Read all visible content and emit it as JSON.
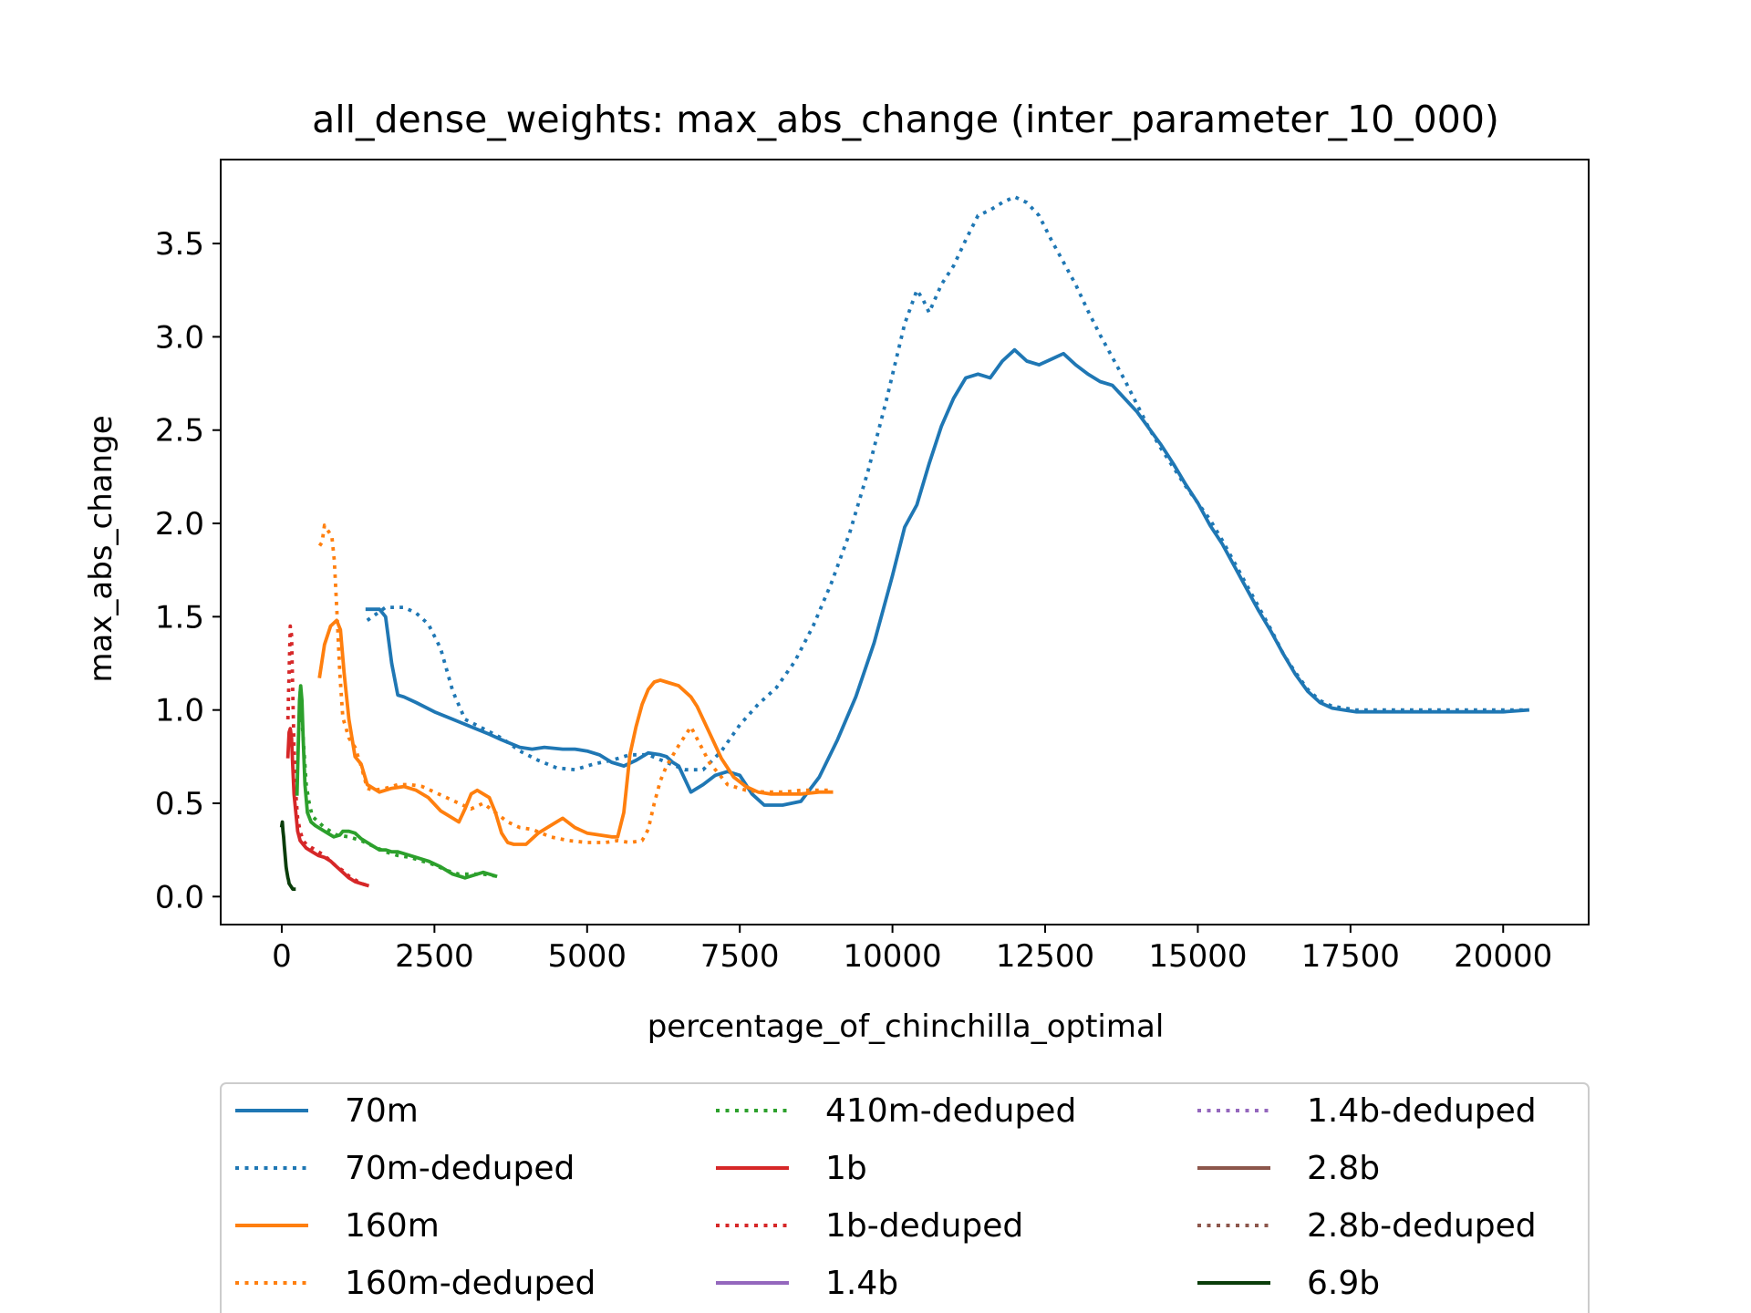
{
  "chart_data": {
    "type": "line",
    "title": "all_dense_weights: max_abs_change (inter_parameter_10_000)",
    "xlabel": "percentage_of_chinchilla_optimal",
    "ylabel": "max_abs_change",
    "xlim": [
      -1000,
      21400
    ],
    "ylim": [
      -0.15,
      3.95
    ],
    "xticks": [
      0,
      2500,
      5000,
      7500,
      10000,
      12500,
      15000,
      17500,
      20000
    ],
    "xtick_labels": [
      "0",
      "2500",
      "5000",
      "7500",
      "10000",
      "12500",
      "15000",
      "17500",
      "20000"
    ],
    "yticks": [
      0.0,
      0.5,
      1.0,
      1.5,
      2.0,
      2.5,
      3.0,
      3.5
    ],
    "ytick_labels": [
      "0.0",
      "0.5",
      "1.0",
      "1.5",
      "2.0",
      "2.5",
      "3.0",
      "3.5"
    ],
    "grid": false,
    "legend_placement": "below plot, 3 columns",
    "series": [
      {
        "name": "70m",
        "color": "#1f77b4",
        "style": "solid",
        "x": [
          1400,
          1600,
          1700,
          1800,
          1900,
          2000,
          2200,
          2500,
          2800,
          3100,
          3400,
          3600,
          3900,
          4100,
          4300,
          4600,
          4800,
          5000,
          5200,
          5400,
          5600,
          5800,
          6000,
          6200,
          6300,
          6400,
          6500,
          6700,
          6900,
          7100,
          7300,
          7500,
          7700,
          7900,
          8200,
          8500,
          8800,
          9100,
          9400,
          9700,
          10000,
          10200,
          10400,
          10600,
          10800,
          11000,
          11200,
          11400,
          11600,
          11800,
          12000,
          12200,
          12400,
          12600,
          12800,
          13000,
          13200,
          13400,
          13600,
          13800,
          14000,
          14200,
          14400,
          14600,
          14800,
          15000,
          15200,
          15400,
          15600,
          15800,
          16000,
          16200,
          16400,
          16600,
          16800,
          17000,
          17200,
          17400,
          17600,
          17800,
          18000,
          18500,
          19000,
          19500,
          20000,
          20400
        ],
        "y": [
          1.54,
          1.54,
          1.5,
          1.25,
          1.08,
          1.07,
          1.04,
          0.99,
          0.95,
          0.91,
          0.87,
          0.84,
          0.8,
          0.79,
          0.8,
          0.79,
          0.79,
          0.78,
          0.76,
          0.72,
          0.7,
          0.73,
          0.77,
          0.76,
          0.75,
          0.72,
          0.7,
          0.56,
          0.6,
          0.65,
          0.67,
          0.65,
          0.55,
          0.49,
          0.49,
          0.51,
          0.64,
          0.84,
          1.07,
          1.36,
          1.72,
          1.98,
          2.1,
          2.32,
          2.52,
          2.67,
          2.78,
          2.8,
          2.78,
          2.87,
          2.93,
          2.87,
          2.85,
          2.88,
          2.91,
          2.85,
          2.8,
          2.76,
          2.74,
          2.67,
          2.6,
          2.51,
          2.42,
          2.32,
          2.21,
          2.11,
          1.99,
          1.89,
          1.77,
          1.65,
          1.53,
          1.42,
          1.3,
          1.19,
          1.1,
          1.04,
          1.01,
          1.0,
          0.99,
          0.99,
          0.99,
          0.99,
          0.99,
          0.99,
          0.99,
          1.0
        ]
      },
      {
        "name": "70m-deduped",
        "color": "#1f77b4",
        "style": "dotted",
        "x": [
          1400,
          1700,
          2000,
          2200,
          2400,
          2600,
          2800,
          3000,
          3300,
          3600,
          3900,
          4200,
          4500,
          4800,
          5100,
          5400,
          5700,
          6000,
          6300,
          6600,
          6900,
          7200,
          7500,
          7800,
          8100,
          8400,
          8700,
          9000,
          9300,
          9600,
          9900,
          10200,
          10400,
          10500,
          10600,
          10800,
          11000,
          11200,
          11400,
          11600,
          11800,
          12000,
          12200,
          12400,
          12600,
          12800,
          13000,
          13200,
          13400,
          13600,
          13800,
          14000,
          14200,
          14400,
          14600,
          14800,
          15000,
          15200,
          15400,
          15600,
          15800,
          16000,
          16200,
          16400,
          16600,
          16800,
          17000,
          17200,
          17400,
          17600,
          17800,
          18000,
          18500,
          19000,
          19500,
          20000,
          20400
        ],
        "y": [
          1.48,
          1.55,
          1.55,
          1.52,
          1.46,
          1.33,
          1.1,
          0.95,
          0.9,
          0.85,
          0.78,
          0.73,
          0.69,
          0.68,
          0.71,
          0.73,
          0.76,
          0.76,
          0.72,
          0.68,
          0.68,
          0.78,
          0.92,
          1.03,
          1.12,
          1.26,
          1.45,
          1.68,
          1.95,
          2.28,
          2.66,
          3.07,
          3.25,
          3.2,
          3.13,
          3.28,
          3.38,
          3.52,
          3.65,
          3.68,
          3.72,
          3.75,
          3.72,
          3.65,
          3.52,
          3.4,
          3.28,
          3.14,
          3.01,
          2.89,
          2.77,
          2.64,
          2.51,
          2.4,
          2.3,
          2.2,
          2.11,
          2.02,
          1.91,
          1.79,
          1.67,
          1.55,
          1.43,
          1.3,
          1.2,
          1.11,
          1.05,
          1.02,
          1.01,
          1.0,
          1.0,
          1.0,
          1.0,
          1.0,
          1.0,
          1.0,
          1.0
        ]
      },
      {
        "name": "160m",
        "color": "#ff7f0e",
        "style": "solid",
        "x": [
          620,
          700,
          800,
          900,
          960,
          1020,
          1100,
          1200,
          1300,
          1400,
          1500,
          1600,
          1800,
          2000,
          2200,
          2400,
          2600,
          2800,
          2900,
          3000,
          3100,
          3200,
          3300,
          3400,
          3500,
          3600,
          3700,
          3800,
          3900,
          4000,
          4200,
          4400,
          4600,
          4800,
          5000,
          5200,
          5400,
          5500,
          5600,
          5700,
          5800,
          5900,
          6000,
          6100,
          6200,
          6300,
          6500,
          6700,
          6800,
          7000,
          7200,
          7400,
          7600,
          7800,
          8000,
          8200,
          8500,
          8800,
          9000
        ],
        "y": [
          1.18,
          1.35,
          1.45,
          1.48,
          1.43,
          1.2,
          0.95,
          0.75,
          0.71,
          0.6,
          0.58,
          0.56,
          0.58,
          0.59,
          0.57,
          0.53,
          0.46,
          0.42,
          0.4,
          0.47,
          0.55,
          0.57,
          0.55,
          0.53,
          0.45,
          0.34,
          0.29,
          0.28,
          0.28,
          0.28,
          0.34,
          0.38,
          0.42,
          0.37,
          0.34,
          0.33,
          0.32,
          0.32,
          0.45,
          0.76,
          0.91,
          1.03,
          1.11,
          1.15,
          1.16,
          1.15,
          1.13,
          1.07,
          1.02,
          0.88,
          0.74,
          0.64,
          0.59,
          0.56,
          0.55,
          0.55,
          0.55,
          0.56,
          0.56
        ]
      },
      {
        "name": "160m-deduped",
        "color": "#ff7f0e",
        "style": "dotted",
        "x": [
          620,
          660,
          700,
          740,
          780,
          820,
          860,
          900,
          950,
          1000,
          1100,
          1200,
          1300,
          1400,
          1500,
          1700,
          1900,
          2100,
          2300,
          2500,
          2700,
          2900,
          3100,
          3300,
          3500,
          3700,
          3900,
          4100,
          4400,
          4700,
          5000,
          5300,
          5500,
          5700,
          5900,
          6000,
          6100,
          6200,
          6300,
          6500,
          6700,
          7000,
          7300,
          7600,
          7900,
          8200,
          8500,
          8800,
          9000
        ],
        "y": [
          1.88,
          1.9,
          1.99,
          1.97,
          1.95,
          1.93,
          1.8,
          1.55,
          1.2,
          0.96,
          0.85,
          0.8,
          0.7,
          0.58,
          0.57,
          0.58,
          0.6,
          0.6,
          0.59,
          0.56,
          0.53,
          0.5,
          0.47,
          0.5,
          0.45,
          0.4,
          0.37,
          0.36,
          0.32,
          0.3,
          0.29,
          0.29,
          0.3,
          0.29,
          0.3,
          0.36,
          0.5,
          0.62,
          0.7,
          0.81,
          0.91,
          0.72,
          0.6,
          0.57,
          0.56,
          0.56,
          0.57,
          0.57,
          0.57
        ]
      },
      {
        "name": "410m-deduped",
        "color": "#2ca02c",
        "style": "dotted",
        "x": [
          300,
          330,
          360,
          400,
          450,
          500,
          600,
          700,
          800,
          900,
          1100,
          1300,
          1500,
          1700,
          1900,
          2100,
          2300,
          2500,
          2700,
          2900,
          3100,
          3300,
          3500
        ],
        "y": [
          1.1,
          0.95,
          0.8,
          0.6,
          0.5,
          0.43,
          0.4,
          0.37,
          0.35,
          0.33,
          0.32,
          0.3,
          0.27,
          0.24,
          0.22,
          0.21,
          0.19,
          0.17,
          0.14,
          0.12,
          0.12,
          0.12,
          0.11
        ]
      },
      {
        "name": "1b",
        "color": "#d62728",
        "style": "solid",
        "x": [
          100,
          120,
          140,
          160,
          180,
          200,
          230,
          260,
          300,
          350,
          400,
          500,
          600,
          700,
          800,
          900,
          1000,
          1100,
          1200,
          1300,
          1400
        ],
        "y": [
          0.75,
          0.88,
          0.9,
          0.85,
          0.7,
          0.55,
          0.45,
          0.35,
          0.3,
          0.28,
          0.26,
          0.24,
          0.22,
          0.21,
          0.19,
          0.16,
          0.13,
          0.1,
          0.08,
          0.07,
          0.06
        ]
      },
      {
        "name": "1b-deduped",
        "color": "#d62728",
        "style": "dotted",
        "x": [
          100,
          120,
          140,
          160,
          180,
          200,
          230,
          260,
          300,
          350,
          400,
          500,
          600,
          700,
          800,
          900,
          1000,
          1100,
          1200,
          1300,
          1400
        ],
        "y": [
          0.95,
          1.2,
          1.45,
          1.4,
          1.1,
          0.8,
          0.55,
          0.42,
          0.35,
          0.3,
          0.28,
          0.26,
          0.24,
          0.22,
          0.19,
          0.16,
          0.14,
          0.11,
          0.09,
          0.07,
          0.06
        ]
      },
      {
        "name": "1.4b",
        "color": "#9467bd",
        "style": "solid",
        "x": [],
        "y": []
      },
      {
        "name": "1.4b-deduped",
        "color": "#9467bd",
        "style": "dotted",
        "x": [],
        "y": []
      },
      {
        "name": "2.8b",
        "color": "#8c564b",
        "style": "solid",
        "x": [],
        "y": []
      },
      {
        "name": "2.8b-deduped",
        "color": "#8c564b",
        "style": "dotted",
        "x": [],
        "y": []
      },
      {
        "name": "410m",
        "color": "#2ca02c",
        "style": "solid",
        "in_legend": false,
        "x": [
          250,
          270,
          290,
          310,
          330,
          350,
          380,
          420,
          480,
          550,
          650,
          750,
          850,
          950,
          1000,
          1050,
          1100,
          1200,
          1300,
          1400,
          1500,
          1600,
          1700,
          1800,
          1900,
          2000,
          2200,
          2400,
          2600,
          2800,
          3000,
          3200,
          3300,
          3400,
          3500
        ],
        "y": [
          0.55,
          0.8,
          1.05,
          1.13,
          1.05,
          0.85,
          0.6,
          0.45,
          0.4,
          0.38,
          0.36,
          0.34,
          0.32,
          0.33,
          0.35,
          0.35,
          0.35,
          0.34,
          0.31,
          0.29,
          0.27,
          0.25,
          0.25,
          0.24,
          0.24,
          0.23,
          0.21,
          0.19,
          0.16,
          0.12,
          0.1,
          0.12,
          0.13,
          0.12,
          0.11
        ]
      },
      {
        "name": "6.9b",
        "color": "#0a3d0a",
        "style": "solid",
        "x": [
          0,
          10,
          20,
          30,
          40,
          50,
          60,
          70,
          80,
          90,
          100,
          110,
          120,
          140,
          160,
          180,
          200
        ],
        "y": [
          0.38,
          0.4,
          0.35,
          0.32,
          0.28,
          0.24,
          0.2,
          0.16,
          0.14,
          0.12,
          0.1,
          0.09,
          0.07,
          0.06,
          0.05,
          0.04,
          0.04
        ]
      }
    ]
  }
}
